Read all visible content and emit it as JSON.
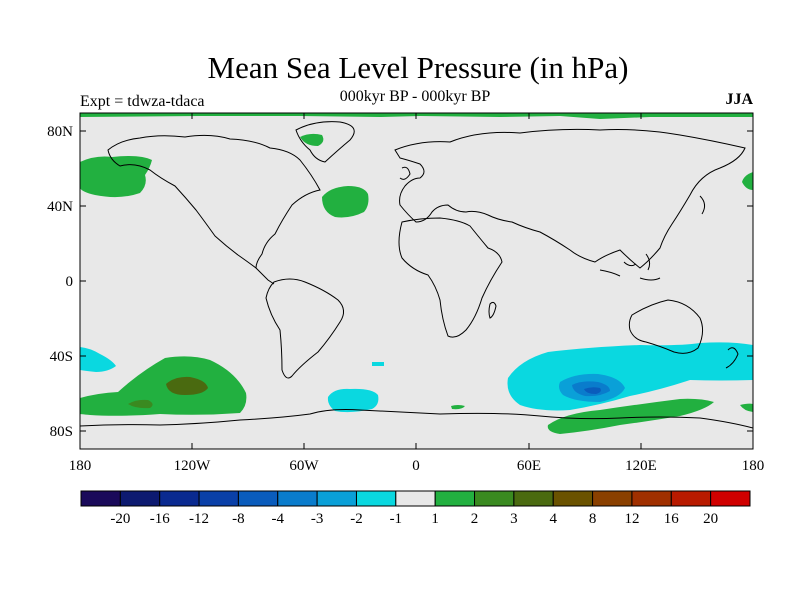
{
  "map": {
    "title": "Mean Sea Level Pressure (in hPa)",
    "subtitle": "000kyr BP - 000kyr BP",
    "left_label": "Expt = tdwza-tdaca",
    "right_label": "JJA",
    "lat_labels": [
      "80N",
      "40N",
      "0",
      "40S",
      "80S"
    ],
    "lon_labels": [
      "180",
      "120W",
      "60W",
      "0",
      "60E",
      "120E",
      "180"
    ]
  },
  "legend": {
    "colors": [
      "#1a0a5a",
      "#0d1a70",
      "#0a2a90",
      "#0a40a8",
      "#0a5cbc",
      "#0a7ccc",
      "#0aa0d8",
      "#0ad8e0",
      "#e8e8e8",
      "#22b040",
      "#3a8a20",
      "#4a6a10",
      "#6a5200",
      "#8a4000",
      "#a03000",
      "#b81a00",
      "#d00000"
    ],
    "labels": [
      "-20",
      "-16",
      "-12",
      "-8",
      "-4",
      "-3",
      "-2",
      "-1",
      "1",
      "2",
      "3",
      "4",
      "8",
      "12",
      "16",
      "20"
    ]
  },
  "colors": {
    "background_field": "#e8e8e8",
    "positive_1_2": "#22b040",
    "positive_2_3": "#3a8a20",
    "positive_3_4": "#4a6a10",
    "negative_1_2": "#0ad8e0",
    "negative_2_3": "#0aa0d8",
    "negative_3_4": "#0a7ccc",
    "negative_4_8": "#0a5cbc"
  }
}
